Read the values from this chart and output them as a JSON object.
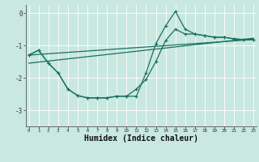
{
  "x": [
    0,
    1,
    2,
    3,
    4,
    5,
    6,
    7,
    8,
    9,
    10,
    11,
    12,
    13,
    14,
    15,
    16,
    17,
    18,
    19,
    20,
    21,
    22,
    23
  ],
  "line1": [
    -1.3,
    -1.15,
    -1.55,
    -1.85,
    -2.35,
    -2.55,
    -2.62,
    -2.62,
    -2.62,
    -2.57,
    -2.57,
    -2.35,
    -2.05,
    -1.5,
    -0.85,
    -0.5,
    -0.65,
    -0.65,
    -0.7,
    -0.75,
    -0.75,
    -0.8,
    -0.82,
    -0.82
  ],
  "line2": [
    -1.3,
    -1.15,
    -1.55,
    -1.85,
    -2.35,
    -2.55,
    -2.62,
    -2.62,
    -2.62,
    -2.57,
    -2.57,
    -2.57,
    -1.85,
    -0.95,
    -0.4,
    0.05,
    -0.5,
    -0.65,
    -0.7,
    -0.75,
    -0.75,
    -0.8,
    -0.82,
    -0.82
  ],
  "line3_x": [
    0,
    23
  ],
  "line3_y": [
    -1.55,
    -0.78
  ],
  "line4_x": [
    0,
    23
  ],
  "line4_y": [
    -1.3,
    -0.82
  ],
  "bg_color": "#c8e8e0",
  "line_color": "#1a7060",
  "grid_color": "#ffffff",
  "xlabel": "Humidex (Indice chaleur)",
  "xlabel_fontsize": 7,
  "ylim": [
    -3.5,
    0.25
  ],
  "xlim": [
    -0.3,
    23.3
  ],
  "yticks": [
    0,
    -1,
    -2,
    -3
  ],
  "ytick_labels": [
    "0",
    "-1",
    "-2",
    "-3"
  ],
  "xticks": [
    0,
    1,
    2,
    3,
    4,
    5,
    6,
    7,
    8,
    9,
    10,
    11,
    12,
    13,
    14,
    15,
    16,
    17,
    18,
    19,
    20,
    21,
    22,
    23
  ]
}
